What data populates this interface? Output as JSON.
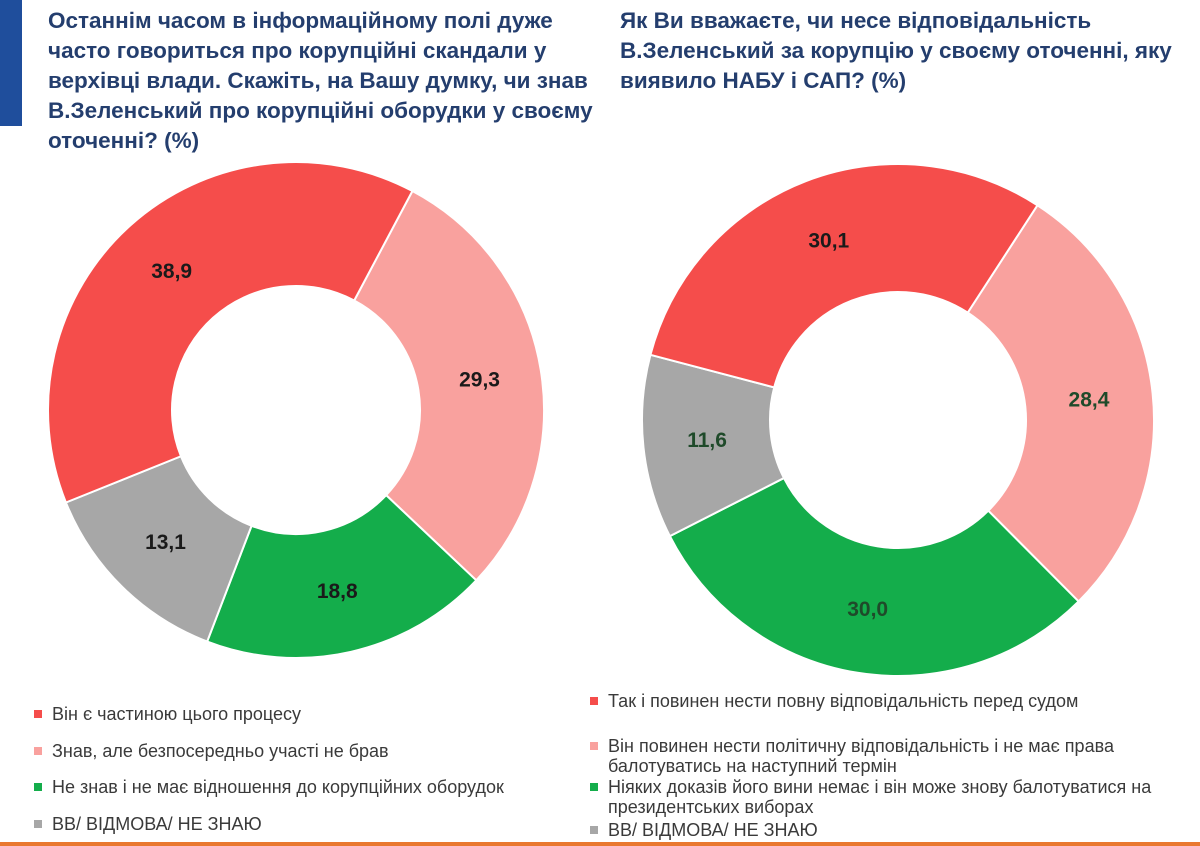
{
  "colors": {
    "red": "#f54d4b",
    "pink": "#f9a19e",
    "green": "#14ad4b",
    "gray": "#a7a7a7",
    "title": "#243e6e",
    "accent": "#1f4e9c",
    "bottom_strip": "#e9782f"
  },
  "chart_data": [
    {
      "type": "pie",
      "donut": true,
      "title": "Останнім часом в інформаційному полі дуже часто говориться про корупційні скандали у верхівці влади. Скажіть, на Вашу думку, чи знав В.Зеленський про корупційні оборудки у своєму оточенні? (%)",
      "unit": "%",
      "slices": [
        {
          "label": "Він є частиною цього процесу",
          "value": 38.9,
          "display": "38,9",
          "color": "#f54d4b",
          "label_color": "#1a1a1a"
        },
        {
          "label": "Знав, але безпосередньо участі не брав",
          "value": 29.3,
          "display": "29,3",
          "color": "#f9a19e",
          "label_color": "#1a1a1a"
        },
        {
          "label": "Не знав і не має відношення до корупційних оборудок",
          "value": 18.8,
          "display": "18,8",
          "color": "#14ad4b",
          "label_color": "#1a1a1a"
        },
        {
          "label": "ВВ/ ВІДМОВА/ НЕ ЗНАЮ",
          "value": 13.1,
          "display": "13,1",
          "color": "#a7a7a7",
          "label_color": "#1a1a1a"
        }
      ]
    },
    {
      "type": "pie",
      "donut": true,
      "title": "Як Ви вважаєте, чи несе відповідальність В.Зеленський за корупцію у своєму оточенні, яку виявило НАБУ і САП? (%)",
      "unit": "%",
      "slices": [
        {
          "label": "Так і повинен нести повну відповідальність перед судом",
          "value": 30.1,
          "display": "30,1",
          "color": "#f54d4b",
          "label_color": "#1a1a1a"
        },
        {
          "label": "Він повинен нести політичну відповідальність і не має права балотуватись на наступний термін",
          "value": 28.4,
          "display": "28,4",
          "color": "#f9a19e",
          "label_color": "#1f4a2a"
        },
        {
          "label": "Ніяких доказів його вини немає і він може знову балотуватися на президентських виборах",
          "value": 30.0,
          "display": "30,0",
          "color": "#14ad4b",
          "label_color": "#1f4a2a"
        },
        {
          "label": "ВВ/ ВІДМОВА/ НЕ ЗНАЮ",
          "value": 11.6,
          "display": "11,6",
          "color": "#a7a7a7",
          "label_color": "#1f4a2a"
        }
      ]
    }
  ]
}
